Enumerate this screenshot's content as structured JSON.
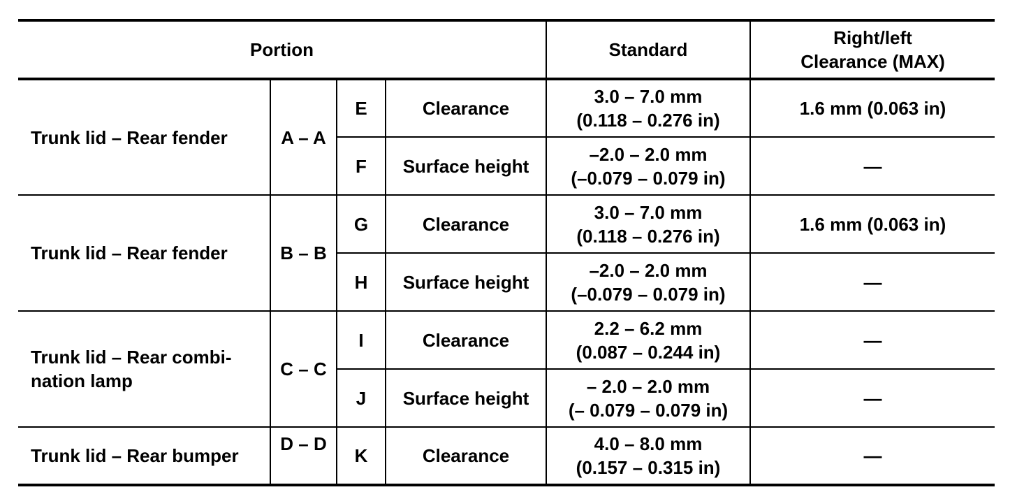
{
  "header": {
    "portion": "Portion",
    "standard": "Standard",
    "clearance_max_line1": "Right/left",
    "clearance_max_line2": "Clearance (MAX)"
  },
  "groups": [
    {
      "portion": "Trunk lid – Rear fender",
      "section": "A – A",
      "rows": [
        {
          "code": "E",
          "item": "Clearance",
          "std_mm": "3.0 – 7.0 mm",
          "std_in": "(0.118 – 0.276 in)",
          "max": "1.6 mm (0.063 in)"
        },
        {
          "code": "F",
          "item": "Surface height",
          "std_mm": "–2.0 – 2.0 mm",
          "std_in": "(–0.079 – 0.079 in)",
          "max": "—"
        }
      ]
    },
    {
      "portion": "Trunk lid – Rear fender",
      "section": "B – B",
      "rows": [
        {
          "code": "G",
          "item": "Clearance",
          "std_mm": "3.0 – 7.0 mm",
          "std_in": "(0.118 – 0.276 in)",
          "max": "1.6 mm (0.063 in)"
        },
        {
          "code": "H",
          "item": "Surface height",
          "std_mm": "–2.0 – 2.0 mm",
          "std_in": "(–0.079 – 0.079 in)",
          "max": "—"
        }
      ]
    },
    {
      "portion_line1": "Trunk lid – Rear combi-",
      "portion_line2": "nation lamp",
      "section": "C – C",
      "rows": [
        {
          "code": "I",
          "item": "Clearance",
          "std_mm": "2.2 – 6.2 mm",
          "std_in": "(0.087 – 0.244 in)",
          "max": "—"
        },
        {
          "code": "J",
          "item": "Surface height",
          "std_mm": "– 2.0 – 2.0 mm",
          "std_in": "(– 0.079 – 0.079 in)",
          "max": "—"
        }
      ]
    },
    {
      "portion": "Trunk lid – Rear bumper",
      "section": "D – D",
      "rows": [
        {
          "code": "K",
          "item": "Clearance",
          "std_mm": "4.0 – 8.0 mm",
          "std_in": "(0.157 – 0.315 in)",
          "max": "—"
        }
      ]
    }
  ]
}
